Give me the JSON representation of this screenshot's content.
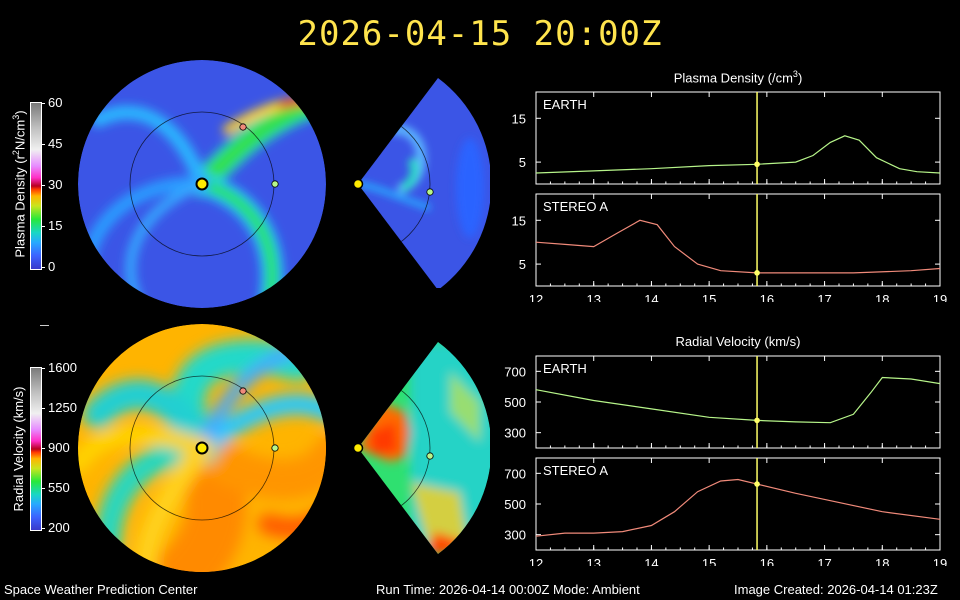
{
  "title": "2026-04-15 20:00Z",
  "density_colorbar": {
    "label": "Plasma Density (r²N/cm³)",
    "label_parts": [
      "Plasma Density (r",
      "2",
      "N/cm",
      "3",
      ")"
    ],
    "ticks": [
      "60",
      "45",
      "30",
      "15",
      "0"
    ]
  },
  "velocity_colorbar": {
    "label": "Radial Velocity (km/s)",
    "ticks": [
      "1600",
      "1250",
      "900",
      "550",
      "200"
    ]
  },
  "density_panel_title": "Plasma Density (/cm³)",
  "density_panel_title_parts": [
    "Plasma Density (/cm",
    "3",
    ")"
  ],
  "velocity_panel_title": "Radial Velocity (km/s)",
  "footer": {
    "left": "Space Weather Prediction Center",
    "center": "Run Time: 2026-04-14 00:00Z  Mode: Ambient",
    "right": "Image Created: 2026-04-14 01:23Z"
  },
  "colors": {
    "title": "#ffe44d",
    "earth_series": "#b7f58a",
    "stereo_series": "#f08a7a",
    "marker_line": "#ffff66",
    "density_background": "#3b55e6",
    "axis": "#ffffff"
  },
  "chart_data": [
    {
      "type": "line",
      "panel": "density",
      "label": "EARTH",
      "x_ticks": [
        "12",
        "13",
        "14",
        "15",
        "16",
        "17",
        "18",
        "19"
      ],
      "y_ticks": [
        "5",
        "15"
      ],
      "xlim": [
        12,
        19
      ],
      "ylim": [
        0,
        21
      ],
      "current_time": 15.83,
      "series": [
        {
          "x": [
            12,
            13,
            14,
            15,
            15.83,
            16.5,
            16.8,
            17.1,
            17.35,
            17.6,
            17.9,
            18.3,
            18.6,
            19
          ],
          "y": [
            2.5,
            3.0,
            3.5,
            4.2,
            4.5,
            5.0,
            6.5,
            9.5,
            11.0,
            10.0,
            6.0,
            3.5,
            2.8,
            2.5
          ]
        }
      ]
    },
    {
      "type": "line",
      "panel": "density",
      "label": "STEREO A",
      "x_ticks": [
        "12",
        "13",
        "14",
        "15",
        "16",
        "17",
        "18",
        "19"
      ],
      "y_ticks": [
        "5",
        "15"
      ],
      "xlim": [
        12,
        19
      ],
      "ylim": [
        0,
        21
      ],
      "current_time": 15.83,
      "series": [
        {
          "x": [
            12,
            12.5,
            13,
            13.4,
            13.8,
            14.1,
            14.4,
            14.8,
            15.2,
            15.83,
            16.5,
            17.5,
            18.5,
            19
          ],
          "y": [
            10,
            9.5,
            9.0,
            12.0,
            15.0,
            14.0,
            9.0,
            5.0,
            3.5,
            3.0,
            3.0,
            3.0,
            3.5,
            4.0
          ]
        }
      ]
    },
    {
      "type": "line",
      "panel": "velocity",
      "label": "EARTH",
      "x_ticks": [
        "12",
        "13",
        "14",
        "15",
        "16",
        "17",
        "18",
        "19"
      ],
      "y_ticks": [
        "300",
        "500",
        "700"
      ],
      "xlim": [
        12,
        19
      ],
      "ylim": [
        200,
        800
      ],
      "current_time": 15.83,
      "series": [
        {
          "x": [
            12,
            13,
            14,
            15,
            15.83,
            16.5,
            17.1,
            17.5,
            17.8,
            18.0,
            18.5,
            19
          ],
          "y": [
            580,
            510,
            455,
            400,
            380,
            370,
            365,
            420,
            560,
            660,
            650,
            620
          ]
        }
      ]
    },
    {
      "type": "line",
      "panel": "velocity",
      "label": "STEREO A",
      "x_ticks": [
        "12",
        "13",
        "14",
        "15",
        "16",
        "17",
        "18",
        "19"
      ],
      "y_ticks": [
        "300",
        "500",
        "700"
      ],
      "xlim": [
        12,
        19
      ],
      "ylim": [
        200,
        800
      ],
      "current_time": 15.83,
      "series": [
        {
          "x": [
            12,
            12.5,
            13,
            13.5,
            14,
            14.4,
            14.8,
            15.2,
            15.5,
            15.83,
            16.5,
            17,
            18,
            19
          ],
          "y": [
            290,
            310,
            310,
            320,
            360,
            450,
            580,
            650,
            660,
            630,
            570,
            530,
            450,
            400
          ]
        }
      ]
    }
  ]
}
